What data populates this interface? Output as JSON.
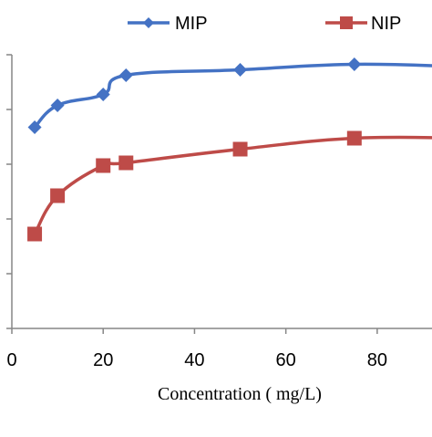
{
  "chart_data": {
    "type": "line",
    "title": "",
    "xlabel": "Concentration ( mg/L)",
    "ylabel": "",
    "xlim": [
      0,
      92
    ],
    "ylim": [
      0,
      100
    ],
    "y_ticks": [
      0,
      20,
      40,
      60,
      80,
      100
    ],
    "x_tick_labels": [
      "0",
      "20",
      "40",
      "60",
      "80"
    ],
    "y_tick_labels_visible": false,
    "grid": false,
    "legend_position": "top",
    "series": [
      {
        "name": "MIP",
        "color": "#4472C4",
        "marker": "diamond",
        "x": [
          5,
          10,
          20,
          25,
          50,
          75,
          100
        ],
        "y": [
          73.5,
          81.5,
          85.5,
          92.5,
          94.5,
          96.5,
          95.5
        ]
      },
      {
        "name": "NIP",
        "color": "#BE4B48",
        "marker": "square",
        "x": [
          5,
          10,
          20,
          25,
          50,
          75,
          100
        ],
        "y": [
          34.5,
          48.5,
          59.5,
          60.5,
          65.5,
          69.5,
          69.5
        ]
      }
    ]
  }
}
